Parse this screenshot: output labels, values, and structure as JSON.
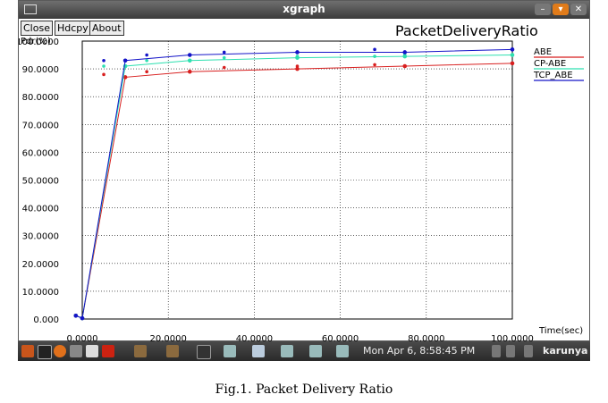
{
  "window": {
    "title": "xgraph",
    "buttons": [
      "Close",
      "Hdcpy",
      "About"
    ]
  },
  "chart_data": {
    "type": "line",
    "title": "PacketDeliveryRatio",
    "ylabel": "Pdr(%)",
    "xlabel": "Time(sec)",
    "xlim": [
      0,
      100
    ],
    "ylim": [
      0,
      100
    ],
    "xticks": [
      "0.0000",
      "20.0000",
      "40.0000",
      "60.0000",
      "80.0000",
      "100.0000"
    ],
    "yticks": [
      "0.000",
      "10.0000",
      "20.0000",
      "30.0000",
      "40.0000",
      "50.0000",
      "60.0000",
      "70.0000",
      "80.0000",
      "90.0000",
      "100.0000"
    ],
    "grid": true,
    "legend_position": "top-right",
    "series": [
      {
        "name": "ABE",
        "color": "#d81f1f",
        "x": [
          -1.5,
          0,
          10,
          25,
          50,
          75,
          100
        ],
        "y": [
          1.2,
          0.3,
          87,
          89,
          90,
          91,
          92
        ],
        "scatter_x": [
          5,
          10,
          15,
          33,
          50,
          68,
          75,
          100
        ],
        "scatter_y": [
          88,
          87,
          89,
          90.5,
          91,
          91.5,
          91,
          92
        ]
      },
      {
        "name": "CP-ABE",
        "color": "#2ee0b0",
        "x": [
          -1.5,
          0,
          10,
          25,
          50,
          75,
          100
        ],
        "y": [
          1.2,
          0.3,
          91,
          93,
          94,
          94.5,
          95
        ],
        "scatter_x": [
          5,
          10,
          15,
          33,
          50,
          68,
          75,
          100
        ],
        "scatter_y": [
          91,
          91,
          93,
          94,
          94.5,
          94.5,
          95,
          95
        ]
      },
      {
        "name": "TCP_ABE",
        "color": "#1414c8",
        "x": [
          -1.5,
          0,
          10,
          25,
          50,
          75,
          100
        ],
        "y": [
          1.2,
          0.3,
          93,
          95,
          96,
          96,
          97
        ],
        "scatter_x": [
          5,
          10,
          15,
          25,
          33,
          50,
          68,
          75,
          100
        ],
        "scatter_y": [
          93,
          93,
          95,
          95,
          96,
          96,
          97,
          96,
          97
        ]
      }
    ]
  },
  "taskbar": {
    "clock": "Mon Apr  6,  8:58:45 PM",
    "user": "karunya"
  },
  "caption": "Fig.1. Packet Delivery Ratio"
}
